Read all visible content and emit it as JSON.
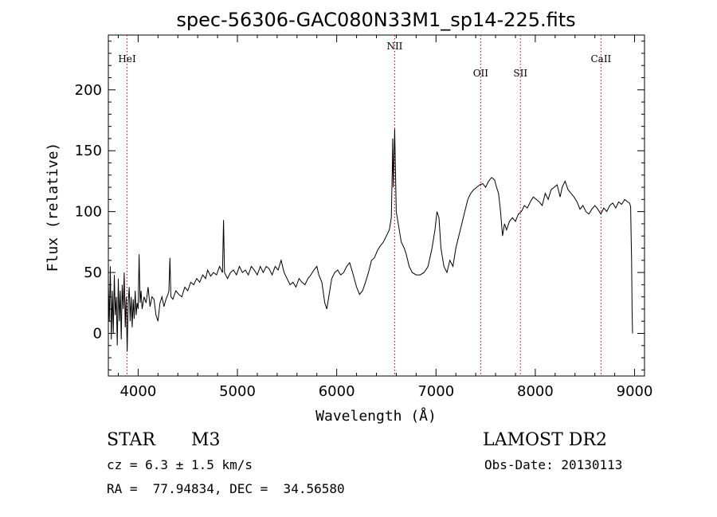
{
  "chart_data": {
    "type": "line",
    "title": "spec-56306-GAC080N33M1_sp14-225.fits",
    "xlabel": "Wavelength (Å)",
    "ylabel": "Flux (relative)",
    "xlim": [
      3700,
      9100
    ],
    "ylim": [
      -35,
      245
    ],
    "x_ticks": [
      4000,
      5000,
      6000,
      7000,
      8000,
      9000
    ],
    "y_ticks": [
      0,
      50,
      100,
      150,
      200
    ],
    "grid": false,
    "line_color": "#000000",
    "marker_color": "#cc0000",
    "lines": [
      {
        "label": "HeI",
        "x": 3889,
        "label_row": "upper"
      },
      {
        "label": "NII",
        "x": 6584,
        "label_row": "top"
      },
      {
        "label": "OII",
        "x": 7450,
        "label_row": "lower"
      },
      {
        "label": "SII",
        "x": 7850,
        "label_row": "lower"
      },
      {
        "label": "CaII",
        "x": 8662,
        "label_row": "upper"
      }
    ],
    "series": [
      {
        "points": [
          [
            3700,
            40
          ],
          [
            3710,
            10
          ],
          [
            3720,
            55
          ],
          [
            3730,
            -5
          ],
          [
            3740,
            35
          ],
          [
            3750,
            0
          ],
          [
            3760,
            48
          ],
          [
            3770,
            15
          ],
          [
            3780,
            30
          ],
          [
            3790,
            -10
          ],
          [
            3800,
            45
          ],
          [
            3810,
            10
          ],
          [
            3820,
            35
          ],
          [
            3830,
            -5
          ],
          [
            3840,
            40
          ],
          [
            3850,
            20
          ],
          [
            3860,
            50
          ],
          [
            3870,
            5
          ],
          [
            3880,
            30
          ],
          [
            3889,
            -15
          ],
          [
            3900,
            25
          ],
          [
            3910,
            38
          ],
          [
            3920,
            10
          ],
          [
            3930,
            30
          ],
          [
            3940,
            5
          ],
          [
            3950,
            28
          ],
          [
            3960,
            12
          ],
          [
            3970,
            35
          ],
          [
            3980,
            15
          ],
          [
            3990,
            25
          ],
          [
            4000,
            20
          ],
          [
            4010,
            65
          ],
          [
            4020,
            25
          ],
          [
            4030,
            35
          ],
          [
            4040,
            20
          ],
          [
            4060,
            30
          ],
          [
            4080,
            25
          ],
          [
            4100,
            38
          ],
          [
            4120,
            22
          ],
          [
            4140,
            30
          ],
          [
            4160,
            28
          ],
          [
            4180,
            15
          ],
          [
            4200,
            10
          ],
          [
            4220,
            25
          ],
          [
            4240,
            30
          ],
          [
            4260,
            22
          ],
          [
            4280,
            28
          ],
          [
            4300,
            32
          ],
          [
            4310,
            35
          ],
          [
            4320,
            62
          ],
          [
            4330,
            30
          ],
          [
            4350,
            28
          ],
          [
            4380,
            35
          ],
          [
            4410,
            32
          ],
          [
            4440,
            30
          ],
          [
            4470,
            38
          ],
          [
            4500,
            35
          ],
          [
            4530,
            42
          ],
          [
            4560,
            40
          ],
          [
            4590,
            45
          ],
          [
            4620,
            42
          ],
          [
            4650,
            48
          ],
          [
            4680,
            45
          ],
          [
            4700,
            52
          ],
          [
            4730,
            47
          ],
          [
            4760,
            50
          ],
          [
            4790,
            48
          ],
          [
            4820,
            55
          ],
          [
            4850,
            50
          ],
          [
            4860,
            93
          ],
          [
            4870,
            50
          ],
          [
            4900,
            45
          ],
          [
            4930,
            50
          ],
          [
            4960,
            52
          ],
          [
            4990,
            48
          ],
          [
            5020,
            55
          ],
          [
            5050,
            50
          ],
          [
            5080,
            52
          ],
          [
            5110,
            48
          ],
          [
            5140,
            55
          ],
          [
            5170,
            52
          ],
          [
            5200,
            48
          ],
          [
            5230,
            55
          ],
          [
            5260,
            50
          ],
          [
            5290,
            55
          ],
          [
            5320,
            53
          ],
          [
            5350,
            48
          ],
          [
            5380,
            55
          ],
          [
            5410,
            52
          ],
          [
            5440,
            60
          ],
          [
            5470,
            50
          ],
          [
            5500,
            45
          ],
          [
            5530,
            40
          ],
          [
            5560,
            42
          ],
          [
            5590,
            38
          ],
          [
            5620,
            45
          ],
          [
            5650,
            42
          ],
          [
            5680,
            40
          ],
          [
            5710,
            45
          ],
          [
            5740,
            48
          ],
          [
            5770,
            52
          ],
          [
            5800,
            55
          ],
          [
            5820,
            48
          ],
          [
            5850,
            42
          ],
          [
            5880,
            25
          ],
          [
            5900,
            20
          ],
          [
            5920,
            30
          ],
          [
            5950,
            45
          ],
          [
            5980,
            50
          ],
          [
            6010,
            52
          ],
          [
            6040,
            48
          ],
          [
            6070,
            50
          ],
          [
            6100,
            55
          ],
          [
            6130,
            58
          ],
          [
            6160,
            50
          ],
          [
            6200,
            38
          ],
          [
            6230,
            32
          ],
          [
            6260,
            35
          ],
          [
            6290,
            42
          ],
          [
            6320,
            50
          ],
          [
            6350,
            60
          ],
          [
            6380,
            62
          ],
          [
            6410,
            68
          ],
          [
            6440,
            72
          ],
          [
            6470,
            75
          ],
          [
            6500,
            80
          ],
          [
            6530,
            85
          ],
          [
            6550,
            95
          ],
          [
            6560,
            135
          ],
          [
            6564,
            160
          ],
          [
            6570,
            120
          ],
          [
            6584,
            168
          ],
          [
            6600,
            100
          ],
          [
            6620,
            90
          ],
          [
            6650,
            75
          ],
          [
            6680,
            70
          ],
          [
            6700,
            65
          ],
          [
            6730,
            55
          ],
          [
            6760,
            50
          ],
          [
            6800,
            48
          ],
          [
            6840,
            48
          ],
          [
            6880,
            50
          ],
          [
            6920,
            55
          ],
          [
            6960,
            70
          ],
          [
            6990,
            85
          ],
          [
            7010,
            100
          ],
          [
            7030,
            95
          ],
          [
            7050,
            70
          ],
          [
            7080,
            55
          ],
          [
            7110,
            50
          ],
          [
            7140,
            60
          ],
          [
            7170,
            55
          ],
          [
            7200,
            70
          ],
          [
            7230,
            80
          ],
          [
            7260,
            90
          ],
          [
            7290,
            100
          ],
          [
            7320,
            110
          ],
          [
            7350,
            115
          ],
          [
            7380,
            118
          ],
          [
            7410,
            120
          ],
          [
            7440,
            122
          ],
          [
            7470,
            123
          ],
          [
            7500,
            120
          ],
          [
            7530,
            125
          ],
          [
            7560,
            128
          ],
          [
            7590,
            126
          ],
          [
            7610,
            120
          ],
          [
            7630,
            115
          ],
          [
            7650,
            100
          ],
          [
            7670,
            80
          ],
          [
            7690,
            90
          ],
          [
            7710,
            85
          ],
          [
            7740,
            92
          ],
          [
            7770,
            95
          ],
          [
            7800,
            92
          ],
          [
            7830,
            98
          ],
          [
            7860,
            100
          ],
          [
            7890,
            105
          ],
          [
            7920,
            103
          ],
          [
            7950,
            108
          ],
          [
            7980,
            112
          ],
          [
            8010,
            110
          ],
          [
            8040,
            108
          ],
          [
            8070,
            105
          ],
          [
            8100,
            115
          ],
          [
            8130,
            110
          ],
          [
            8160,
            118
          ],
          [
            8190,
            120
          ],
          [
            8220,
            122
          ],
          [
            8250,
            112
          ],
          [
            8270,
            120
          ],
          [
            8300,
            125
          ],
          [
            8330,
            118
          ],
          [
            8360,
            115
          ],
          [
            8390,
            112
          ],
          [
            8420,
            108
          ],
          [
            8450,
            102
          ],
          [
            8480,
            105
          ],
          [
            8510,
            100
          ],
          [
            8540,
            98
          ],
          [
            8570,
            102
          ],
          [
            8600,
            105
          ],
          [
            8630,
            102
          ],
          [
            8660,
            98
          ],
          [
            8690,
            103
          ],
          [
            8720,
            100
          ],
          [
            8750,
            105
          ],
          [
            8780,
            107
          ],
          [
            8810,
            103
          ],
          [
            8840,
            108
          ],
          [
            8870,
            106
          ],
          [
            8900,
            110
          ],
          [
            8930,
            108
          ],
          [
            8950,
            107
          ],
          [
            8960,
            104
          ],
          [
            8965,
            80
          ],
          [
            8970,
            60
          ],
          [
            8975,
            20
          ],
          [
            8980,
            0
          ]
        ]
      }
    ]
  },
  "info": {
    "object_type": "STAR",
    "subclass": "M3",
    "cz": "cz = 6.3 ± 1.5 km/s",
    "coords": "RA =  77.94834, DEC =  34.56580",
    "survey": "LAMOST DR2",
    "obs_date": "Obs-Date: 20130113"
  }
}
